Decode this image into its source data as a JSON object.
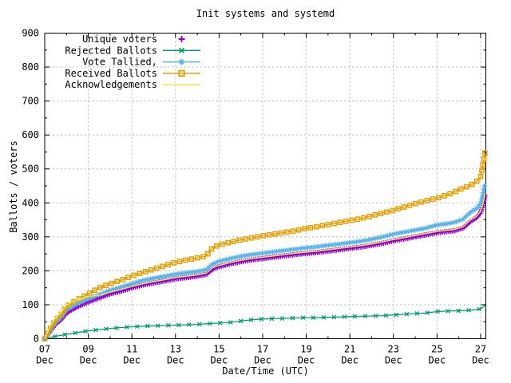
{
  "chart_data": {
    "type": "line",
    "title": "Init systems and systemd",
    "xlabel": "Date/Time (UTC)",
    "ylabel": "Ballots / voters",
    "ylim": [
      0,
      900
    ],
    "ytick_step": 100,
    "xlim_days": [
      0,
      20.24
    ],
    "grid": true,
    "legend_position": "top-left",
    "background": "#ffffff",
    "grid_color": "#b8b8b8",
    "axis_color": "#000000",
    "yticks": [
      {
        "v": 0,
        "label": "0"
      },
      {
        "v": 100,
        "label": "100"
      },
      {
        "v": 200,
        "label": "200"
      },
      {
        "v": 300,
        "label": "300"
      },
      {
        "v": 400,
        "label": "400"
      },
      {
        "v": 500,
        "label": "500"
      },
      {
        "v": 600,
        "label": "600"
      },
      {
        "v": 700,
        "label": "700"
      },
      {
        "v": 800,
        "label": "800"
      },
      {
        "v": 900,
        "label": "900"
      }
    ],
    "xticks": [
      {
        "day": 0,
        "label": "07",
        "sub": "Dec"
      },
      {
        "day": 2,
        "label": "09",
        "sub": "Dec"
      },
      {
        "day": 4,
        "label": "11",
        "sub": "Dec"
      },
      {
        "day": 6,
        "label": "13",
        "sub": "Dec"
      },
      {
        "day": 8,
        "label": "15",
        "sub": "Dec"
      },
      {
        "day": 10,
        "label": "17",
        "sub": "Dec"
      },
      {
        "day": 12,
        "label": "19",
        "sub": "Dec"
      },
      {
        "day": 14,
        "label": "21",
        "sub": "Dec"
      },
      {
        "day": 16,
        "label": "23",
        "sub": "Dec"
      },
      {
        "day": 18,
        "label": "25",
        "sub": "Dec"
      },
      {
        "day": 20,
        "label": "27",
        "sub": "Dec"
      }
    ],
    "x_days": [
      0,
      0.25,
      0.5,
      0.75,
      1,
      1.5,
      2,
      2.5,
      3,
      3.5,
      4,
      4.5,
      5,
      5.5,
      6,
      6.5,
      7,
      7.4,
      7.7,
      8,
      8.5,
      9,
      9.5,
      10,
      10.5,
      11,
      11.5,
      12,
      12.5,
      13,
      13.5,
      14,
      14.5,
      15,
      15.5,
      16,
      16.5,
      17,
      17.5,
      18,
      18.4,
      18.8,
      19.2,
      19.5,
      19.8,
      20,
      20.1,
      20.2
    ],
    "series": [
      {
        "name": "Unique voters",
        "color": "#9400d3",
        "marker": "plus",
        "line": false,
        "values": [
          0,
          22,
          43,
          56,
          76,
          94,
          108,
          120,
          132,
          140,
          150,
          158,
          164,
          170,
          176,
          180,
          184,
          189,
          205,
          212,
          220,
          227,
          232,
          236,
          240,
          244,
          248,
          251,
          254,
          258,
          262,
          266,
          270,
          275,
          281,
          288,
          294,
          300,
          306,
          312,
          315,
          318,
          326,
          344,
          356,
          371,
          392,
          423
        ]
      },
      {
        "name": "Rejected Ballots",
        "color": "#009e73",
        "marker": "cross",
        "line": true,
        "values": [
          0,
          4,
          7,
          10,
          13,
          18,
          23,
          27,
          30,
          33,
          35,
          37,
          38,
          39,
          40,
          41,
          42,
          44,
          45,
          46,
          48,
          52,
          56,
          58,
          59,
          60,
          61,
          62,
          62,
          63,
          64,
          65,
          66,
          67,
          68,
          70,
          72,
          74,
          76,
          80,
          81,
          82,
          83,
          84,
          86,
          88,
          92,
          99
        ]
      },
      {
        "name": "Vote Tallied,",
        "color": "#56b4e9",
        "marker": "asterisk",
        "line": true,
        "values": [
          0,
          25,
          48,
          62,
          85,
          103,
          118,
          130,
          143,
          152,
          162,
          172,
          178,
          184,
          190,
          194,
          198,
          203,
          220,
          228,
          236,
          243,
          248,
          252,
          256,
          260,
          264,
          268,
          271,
          275,
          279,
          283,
          287,
          293,
          300,
          308,
          314,
          320,
          326,
          335,
          338,
          343,
          352,
          371,
          383,
          398,
          420,
          455
        ]
      },
      {
        "name": "Received Ballots",
        "color": "#e69f00",
        "marker": "square",
        "line": true,
        "values": [
          0,
          30,
          55,
          70,
          95,
          115,
          132,
          150,
          162,
          172,
          185,
          195,
          205,
          215,
          225,
          232,
          238,
          243,
          268,
          276,
          284,
          291,
          297,
          303,
          308,
          313,
          318,
          325,
          330,
          336,
          342,
          348,
          354,
          362,
          370,
          378,
          388,
          398,
          406,
          414,
          422,
          432,
          444,
          450,
          462,
          476,
          510,
          548
        ]
      },
      {
        "name": "Acknowledgements",
        "color": "#f0e442",
        "marker": "none",
        "line": true,
        "values": [
          0,
          38,
          62,
          78,
          100,
          116,
          124,
          128,
          137,
          145,
          154,
          162,
          168,
          174,
          180,
          184,
          188,
          193,
          209,
          216,
          224,
          231,
          236,
          240,
          244,
          248,
          252,
          255,
          258,
          262,
          266,
          270,
          274,
          279,
          285,
          292,
          298,
          304,
          310,
          316,
          319,
          322,
          330,
          348,
          360,
          375,
          396,
          428
        ]
      }
    ]
  }
}
